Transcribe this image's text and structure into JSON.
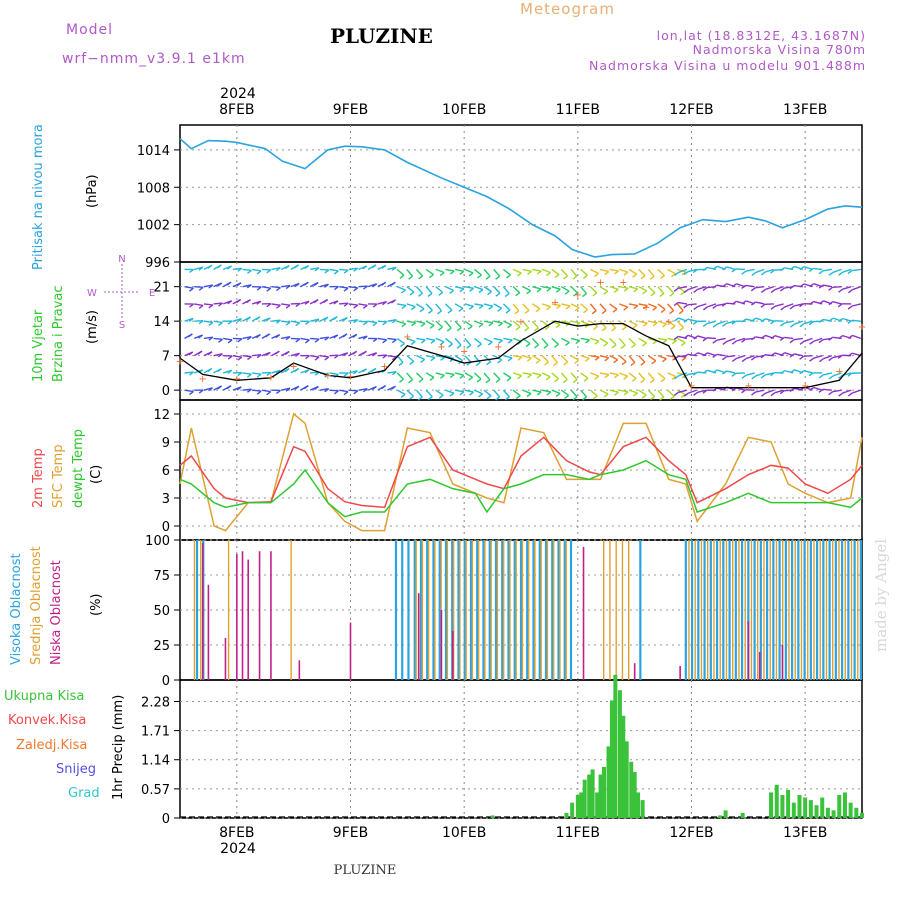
{
  "header": {
    "model_label": "Model",
    "model_name": "wrf−nmm_v3.9.1  e1km",
    "title": "PLUZINE",
    "meteogram": "Meteogram",
    "location": "lon,lat (18.8312E, 43.1687N)",
    "altitude": "Nadmorska Visina 780m",
    "model_altitude": "Nadmorska Visina u modelu 901.488m",
    "watermark": "made by Angel",
    "footer": "PLUZINE"
  },
  "colors": {
    "pressure": "#2aa3e0",
    "temp2m": "#f04848",
    "sfc_temp": "#e0a030",
    "dewpt": "#2ec82e",
    "high_cloud": "#2aa3e0",
    "mid_cloud": "#e0a030",
    "low_cloud": "#c0208a",
    "precip_total": "#3ac23a",
    "precip_conv": "#f04848",
    "precip_frozen": "#f07830",
    "snow": "#5050e0",
    "graupel": "#30c8c8",
    "header_text": "#b05ac8"
  },
  "time_axis": {
    "year": "2024",
    "dates": [
      "8FEB",
      "9FEB",
      "10FEB",
      "11FEB",
      "12FEB",
      "13FEB"
    ]
  },
  "chart_data": [
    {
      "name": "pressure",
      "type": "line",
      "ylabel": "(hPa)",
      "side_label": [
        "Pritisak na nivou mora"
      ],
      "ylim": [
        996,
        1018
      ],
      "yticks": [
        "1014",
        "1008",
        "1002",
        "996"
      ],
      "x_days": [
        7.5,
        7.6,
        7.75,
        7.9,
        8.0,
        8.25,
        8.4,
        8.6,
        8.8,
        8.95,
        9.1,
        9.3,
        9.5,
        9.8,
        10.0,
        10.2,
        10.4,
        10.6,
        10.8,
        10.95,
        11.15,
        11.3,
        11.5,
        11.7,
        11.9,
        12.1,
        12.3,
        12.5,
        12.65,
        12.8,
        13.0,
        13.2,
        13.35,
        13.5
      ],
      "values": [
        1015.8,
        1014.2,
        1015.5,
        1015.4,
        1015.2,
        1014.2,
        1012.2,
        1011.0,
        1014.0,
        1014.6,
        1014.5,
        1014.0,
        1012.0,
        1009.5,
        1008.0,
        1006.5,
        1004.5,
        1002.0,
        1000.2,
        998.0,
        996.8,
        997.2,
        997.3,
        999.0,
        1001.5,
        1002.8,
        1002.5,
        1003.2,
        1002.6,
        1001.5,
        1002.8,
        1004.5,
        1005.0,
        1004.8
      ]
    },
    {
      "name": "wind",
      "type": "line",
      "ylabel": "(m/s)",
      "side_label": [
        "10m Vjetar",
        "Brzina i Pravac"
      ],
      "compass": [
        "N",
        "W",
        "E",
        "S"
      ],
      "ylim": [
        -2,
        26
      ],
      "yticks": [
        "21",
        "14",
        "7",
        "0"
      ],
      "speed_x": [
        7.5,
        7.7,
        8.0,
        8.3,
        8.5,
        8.8,
        9.0,
        9.3,
        9.5,
        9.8,
        10.0,
        10.3,
        10.5,
        10.8,
        11.0,
        11.2,
        11.4,
        11.6,
        11.8,
        12.0,
        12.5,
        13.0,
        13.3,
        13.5
      ],
      "speed": [
        6.5,
        3.2,
        2.0,
        2.5,
        5.5,
        3.0,
        2.5,
        4.0,
        9.0,
        7.0,
        5.5,
        6.5,
        10.0,
        14.0,
        13.0,
        13.5,
        13.5,
        11.0,
        9.0,
        0.5,
        0.5,
        0.5,
        2.0,
        7.5
      ],
      "gust": [
        6.0,
        2.5,
        2.5,
        2.8,
        5.0,
        3.2,
        3.0,
        5.0,
        11.0,
        9.0,
        8.0,
        9.0,
        14.0,
        18.0,
        19.5,
        22.0,
        22.0,
        17.0,
        14.0,
        1.0,
        1.0,
        1.0,
        4.0,
        13.0
      ]
    },
    {
      "name": "temperature",
      "type": "line",
      "ylabel": "(C)",
      "side_label": [
        "2m Temp",
        "SFC Temp",
        "dewpt Temp"
      ],
      "ylim": [
        -1.5,
        13.5
      ],
      "yticks": [
        "12",
        "9",
        "6",
        "3",
        "0"
      ],
      "x_days": [
        7.5,
        7.6,
        7.8,
        7.9,
        8.1,
        8.3,
        8.5,
        8.6,
        8.8,
        8.95,
        9.1,
        9.3,
        9.5,
        9.7,
        9.9,
        10.1,
        10.2,
        10.35,
        10.5,
        10.7,
        10.9,
        11.1,
        11.2,
        11.4,
        11.6,
        11.8,
        11.95,
        12.05,
        12.3,
        12.5,
        12.7,
        12.85,
        13.0,
        13.2,
        13.4,
        13.5
      ],
      "temp2m": [
        6.5,
        7.5,
        4.0,
        3.0,
        2.5,
        2.6,
        8.5,
        8.0,
        4.0,
        2.6,
        2.2,
        2.0,
        8.5,
        9.5,
        6.0,
        5.0,
        4.5,
        4.0,
        7.5,
        9.5,
        7.0,
        5.8,
        5.5,
        8.5,
        9.5,
        7.0,
        5.5,
        2.5,
        4.0,
        5.5,
        6.5,
        6.2,
        4.5,
        3.5,
        5.0,
        6.5
      ],
      "sfc": [
        4.5,
        10.5,
        0.0,
        -0.5,
        2.5,
        2.5,
        12.0,
        11.0,
        2.5,
        0.5,
        -0.5,
        -0.5,
        10.5,
        10.0,
        4.5,
        3.5,
        3.0,
        2.5,
        10.5,
        10.0,
        5.0,
        5.0,
        5.0,
        11.0,
        11.0,
        5.0,
        4.5,
        0.5,
        4.5,
        9.5,
        9.0,
        4.5,
        3.5,
        2.5,
        3.0,
        9.5
      ],
      "dewpt": [
        5.0,
        4.5,
        2.5,
        2.0,
        2.5,
        2.5,
        4.5,
        6.0,
        2.5,
        1.0,
        1.5,
        1.5,
        4.5,
        5.0,
        4.0,
        3.5,
        1.5,
        4.0,
        4.5,
        5.5,
        5.5,
        5.0,
        5.5,
        6.0,
        7.0,
        5.5,
        5.0,
        1.5,
        2.5,
        3.5,
        2.5,
        2.5,
        2.5,
        2.5,
        2.0,
        3.0
      ]
    },
    {
      "name": "cloud",
      "type": "bar",
      "ylabel": "(%)",
      "side_label": [
        "Visoka Oblacnost",
        "Srednja Oblacnost",
        "Niska Oblacnost"
      ],
      "ylim": [
        0,
        100
      ],
      "yticks": [
        "100",
        "75",
        "50",
        "25",
        "0"
      ],
      "high_ranges": [
        [
          7.65,
          7.75
        ],
        [
          9.4,
          10.95
        ],
        [
          11.55,
          11.6
        ],
        [
          11.95,
          13.5
        ]
      ],
      "mid_ranges": [
        [
          7.6,
          7.72
        ],
        [
          7.9,
          7.95
        ],
        [
          8.45,
          8.5
        ],
        [
          9.55,
          10.9
        ],
        [
          11.2,
          11.45
        ],
        [
          11.95,
          13.5
        ]
      ],
      "low_spikes": [
        [
          7.7,
          98
        ],
        [
          7.75,
          68
        ],
        [
          7.9,
          30
        ],
        [
          8.0,
          90
        ],
        [
          8.05,
          92
        ],
        [
          8.1,
          86
        ],
        [
          8.2,
          92
        ],
        [
          8.3,
          92
        ],
        [
          8.55,
          14
        ],
        [
          9.0,
          41
        ],
        [
          9.6,
          62
        ],
        [
          9.8,
          50
        ],
        [
          9.9,
          35
        ],
        [
          11.05,
          95
        ],
        [
          11.5,
          12
        ],
        [
          11.9,
          10
        ],
        [
          12.5,
          42
        ],
        [
          12.6,
          20
        ],
        [
          12.8,
          25
        ]
      ]
    },
    {
      "name": "precip",
      "type": "bar",
      "ylabel": "1hr Precip (mm)",
      "side_label": [
        "Ukupna Kisa",
        "Konvek.Kisa",
        "Zaledj.Kisa",
        "Snijeg",
        "Grad"
      ],
      "ylim": [
        0,
        2.7
      ],
      "yticks": [
        "2.28",
        "1.71",
        "1.14",
        "0.57",
        "0"
      ],
      "x_days": [
        10.25,
        10.9,
        10.95,
        11.0,
        11.03,
        11.06,
        11.1,
        11.13,
        11.17,
        11.2,
        11.23,
        11.27,
        11.3,
        11.33,
        11.37,
        11.4,
        11.43,
        11.47,
        11.5,
        11.53,
        11.57,
        12.25,
        12.3,
        12.45,
        12.7,
        12.75,
        12.8,
        12.85,
        12.9,
        12.95,
        13.0,
        13.05,
        13.1,
        13.15,
        13.2,
        13.25,
        13.3,
        13.35,
        13.4,
        13.45,
        13.5
      ],
      "values": [
        0.05,
        0.1,
        0.3,
        0.45,
        0.5,
        0.75,
        0.85,
        0.95,
        0.5,
        0.85,
        1.0,
        1.4,
        2.3,
        2.8,
        2.5,
        2.0,
        1.5,
        1.1,
        0.9,
        0.5,
        0.35,
        0.05,
        0.15,
        0.1,
        0.5,
        0.65,
        0.45,
        0.55,
        0.3,
        0.45,
        0.4,
        0.35,
        0.25,
        0.4,
        0.2,
        0.15,
        0.45,
        0.5,
        0.3,
        0.2,
        0.1
      ]
    }
  ],
  "labels": {
    "pressure_side": "Pritisak na nivou mora",
    "pressure_unit": "(hPa)",
    "wind_side1": "10m Vjetar",
    "wind_side2": "Brzina i Pravac",
    "wind_unit": "(m/s)",
    "temp_side1": "2m Temp",
    "temp_side2": "SFC Temp",
    "temp_side3": "dewpt Temp",
    "temp_unit": "(C)",
    "cloud_side1": "Visoka Oblacnost",
    "cloud_side2": "Srednja Oblacnost",
    "cloud_side3": "Niska Oblacnost",
    "cloud_unit": "(%)",
    "precip_unit": "1hr Precip (mm)",
    "legend_total": "Ukupna Kisa",
    "legend_conv": "Konvek.Kisa",
    "legend_frozen": "Zaledj.Kisa",
    "legend_snow": "Snijeg",
    "legend_grad": "Grad"
  }
}
